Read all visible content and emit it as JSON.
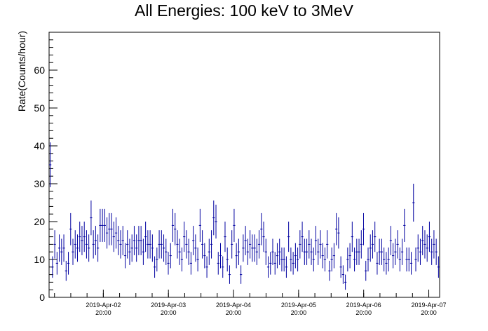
{
  "chart_data": {
    "type": "scatter",
    "title": "All Energies:  100 keV to 3MeV",
    "xlabel": "",
    "ylabel": "Rate(Counts/hour)",
    "ylim": [
      0,
      70
    ],
    "yticks": [
      0,
      10,
      20,
      30,
      40,
      50,
      60
    ],
    "xlim_hours": [
      0,
      144
    ],
    "xtick_labels": [
      {
        "date": "2019-Apr-02",
        "time": "20:00",
        "hour": 20
      },
      {
        "date": "2019-Apr-03",
        "time": "20:00",
        "hour": 44
      },
      {
        "date": "2019-Apr-04",
        "time": "20:00",
        "hour": 68
      },
      {
        "date": "2019-Apr-05",
        "time": "20:00",
        "hour": 92
      },
      {
        "date": "2019-Apr-06",
        "time": "20:00",
        "hour": 116
      },
      {
        "date": "2019-Apr-07",
        "time": "20:00",
        "hour": 140
      }
    ],
    "series": [
      {
        "color": "#0000a0",
        "values": [
          35,
          8,
          14,
          9,
          13,
          12,
          13,
          7,
          9,
          18,
          12,
          14,
          13,
          16,
          15,
          16,
          14,
          13,
          21,
          14,
          15,
          13,
          19,
          19,
          19,
          17,
          18,
          18,
          16,
          17,
          15,
          14,
          15,
          11,
          14,
          12,
          13,
          15,
          13,
          15,
          15,
          12,
          16,
          14,
          14,
          13,
          8,
          10,
          14,
          14,
          13,
          12,
          9,
          11,
          19,
          18,
          14,
          12,
          10,
          16,
          14,
          12,
          9,
          15,
          13,
          10,
          19,
          14,
          11,
          8,
          12,
          14,
          21,
          20,
          9,
          11,
          8,
          16,
          10,
          6,
          14,
          19,
          11,
          12,
          6,
          13,
          15,
          12,
          14,
          13,
          13,
          12,
          14,
          18,
          16,
          12,
          8,
          9,
          12,
          9,
          11,
          12,
          10,
          10,
          8,
          16,
          10,
          9,
          11,
          10,
          14,
          16,
          12,
          12,
          14,
          12,
          10,
          15,
          12,
          14,
          11,
          10,
          14,
          7,
          10,
          11,
          18,
          17,
          8,
          6,
          4,
          10,
          11,
          16,
          10,
          12,
          12,
          14,
          18,
          7,
          10,
          13,
          14,
          16,
          9,
          12,
          12,
          10,
          9,
          10,
          15,
          11,
          12,
          14,
          10,
          12,
          19,
          10,
          10,
          9,
          25,
          10,
          13,
          12,
          15,
          14,
          13,
          16,
          12,
          14,
          12,
          8
        ]
      }
    ]
  }
}
